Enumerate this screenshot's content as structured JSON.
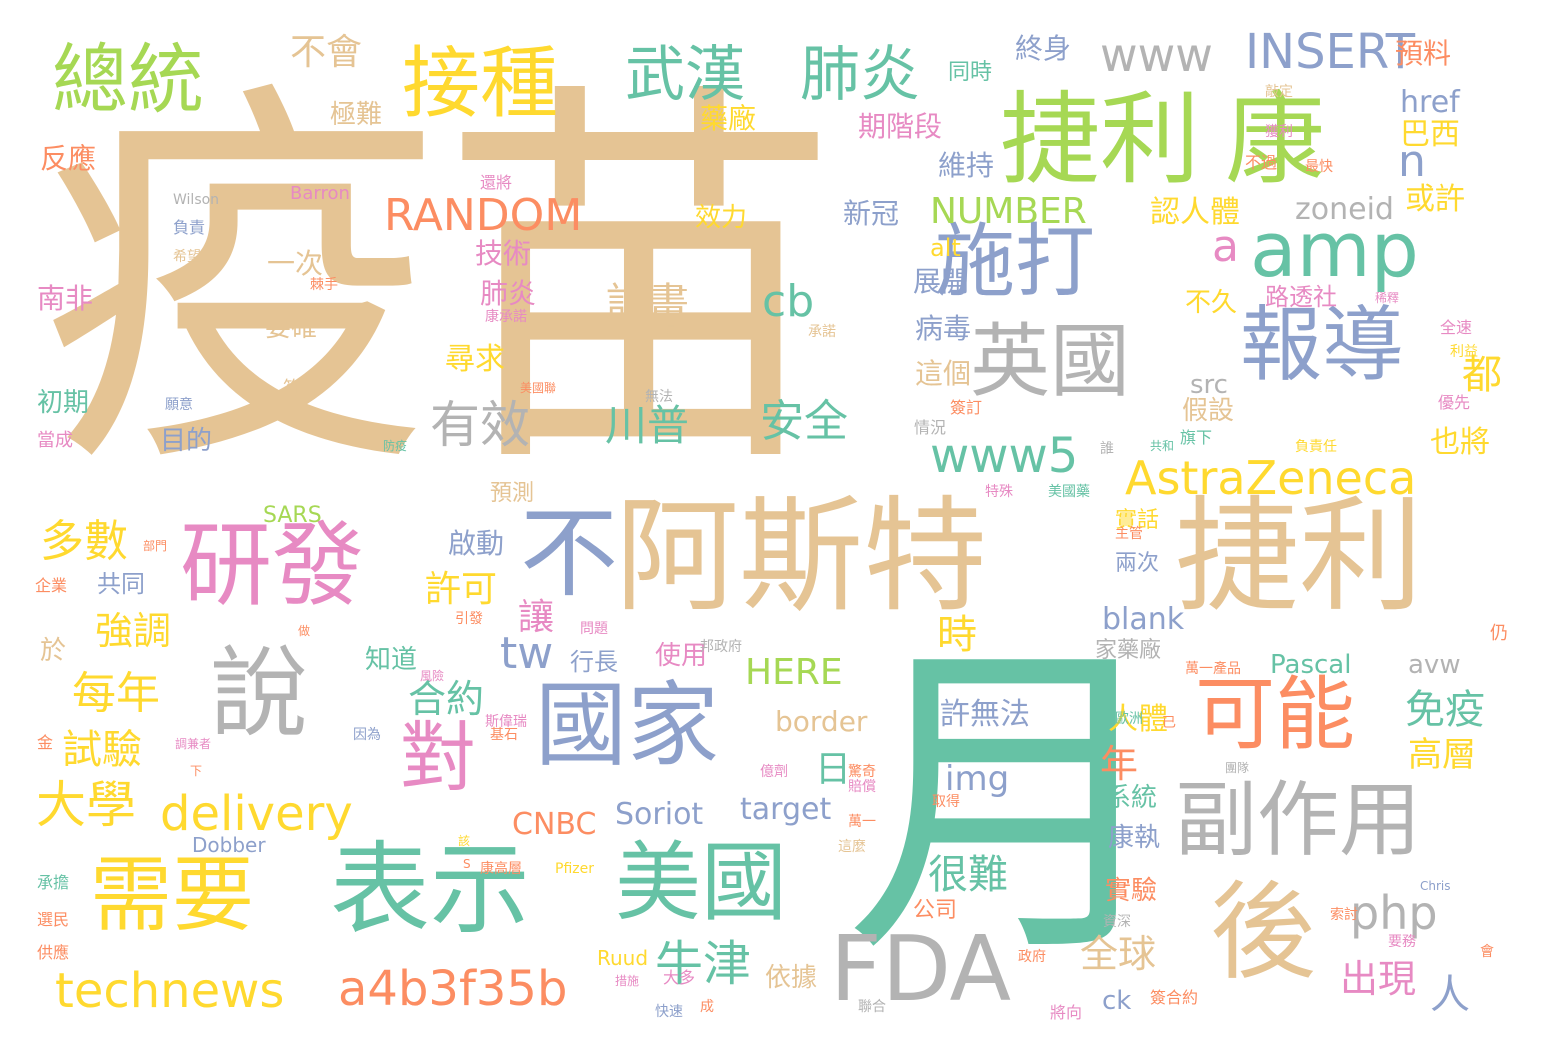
{
  "palette": {
    "tan": "#e5c494",
    "yellow": "#ffd92f",
    "green": "#a6d854",
    "teal": "#66c2a5",
    "orange": "#fc8d62",
    "blue": "#8da0cb",
    "pink": "#e78ac3",
    "gray": "#b3b3b3"
  },
  "words": {
    "w001": "疫苗",
    "w002": "月",
    "w003": "捷利",
    "w004": "康",
    "w005": "總統",
    "w006": "接種",
    "w007": "武漢",
    "w008": "肺炎",
    "w009": "www",
    "w010": "INSERT",
    "w011": "不會",
    "w012": "終身",
    "w013": "預料",
    "w014": "amp",
    "w015": "施打",
    "w016": "英國",
    "w017": "報導",
    "w018": "RANDOM",
    "w019": "NUMBER",
    "w020": "a",
    "w021": "n",
    "w022": "cb",
    "w023": "計畫",
    "w024": "川普",
    "w025": "安全",
    "w026": "有效",
    "w027": "www5",
    "w028": "AstraZeneca",
    "w029": "研發",
    "w030": "不",
    "w031": "阿斯特",
    "w032": "捷利",
    "w033": "說",
    "w034": "國家",
    "w035": "對",
    "w036": "可能",
    "w037": "副作用",
    "w038": "後",
    "w039": "需要",
    "w040": "表示",
    "w041": "美國",
    "w042": "FDA",
    "w043": "technews",
    "w044": "a4b3f35b",
    "w045": "delivery",
    "w046": "大學",
    "w047": "每年",
    "w048": "試驗",
    "w049": "多數",
    "w050": "強調",
    "w051": "牛津",
    "w052": "全球",
    "w053": "出現",
    "w054": "php",
    "w055": "免疫",
    "w056": "高層",
    "w057": "許無法",
    "w058": "很難",
    "w059": "img",
    "w060": "HERE",
    "w061": "border",
    "w062": "target",
    "w063": "CNBC",
    "w064": "Soriot",
    "w065": "日",
    "w066": "年",
    "w067": "tw",
    "w068": "合約",
    "w069": "許可",
    "w070": "讓",
    "w071": "時",
    "w072": "blank",
    "w073": "人體",
    "w074": "Pascal",
    "w075": "avw",
    "w076": "zoneid",
    "w077": "src",
    "w078": "href",
    "w079": "巴西",
    "w080": "都",
    "w081": "也將",
    "w082": "人",
    "w083": "認人體",
    "w084": "或許",
    "w085": "假設",
    "w086": "反應",
    "w087": "南非",
    "w088": "初期",
    "w089": "當成",
    "w090": "企業",
    "w091": "於",
    "w092": "金",
    "w093": "承擔",
    "w094": "選民",
    "w095": "供應",
    "w096": "極難",
    "w097": "藥廠",
    "w098": "期階段",
    "w099": "維持",
    "w100": "新冠",
    "w101": "效力",
    "w102": "技術",
    "w103": "一次",
    "w104": "alt",
    "w105": "展開",
    "w106": "病毒",
    "w107": "這個",
    "w108": "要確",
    "w109": "肺炎",
    "w110": "不久",
    "w111": "路透社",
    "w112": "尋求",
    "w113": "目的",
    "w114": "SARS",
    "w115": "預測",
    "w116": "啟動",
    "w117": "共同",
    "w118": "知道",
    "w119": "行長",
    "w120": "使用",
    "w121": "系統",
    "w122": "康執",
    "w123": "實驗",
    "w124": "公司",
    "w125": "依據",
    "w126": "ck",
    "w127": "實話",
    "w128": "兩次",
    "w129": "家藥廠",
    "w130": "同時",
    "w131": "Wilson",
    "w132": "Barron",
    "w133": "負責",
    "w134": "希望",
    "w135": "棘手",
    "w136": "康承諾",
    "w137": "美國聯",
    "w138": "願意",
    "w139": "符合",
    "w140": "防疫",
    "w141": "成員",
    "w142": "承諾",
    "w143": "無法",
    "w144": "簽訂",
    "w145": "情況",
    "w146": "誰",
    "w147": "共和",
    "w148": "旗下",
    "w149": "負責任",
    "w150": "特殊",
    "w151": "美國藥",
    "w152": "主管",
    "w153": "部門",
    "w154": "引發",
    "w155": "問題",
    "w156": "邦政府",
    "w157": "做",
    "w158": "風險",
    "w159": "斯偉瑞",
    "w160": "基石",
    "w161": "因為",
    "w162": "億劑",
    "w163": "驚奇",
    "w164": "賠償",
    "w165": "取得",
    "w166": "團隊",
    "w167": "萬一產品",
    "w168": "歐洲",
    "w169": "已",
    "w170": "仍",
    "w171": "調兼者",
    "w172": "下",
    "w173": "萬一",
    "w174": "這麼",
    "w175": "Dobber",
    "w176": "該",
    "w177": "S",
    "w178": "康高層",
    "w179": "Pfizer",
    "w180": "資深",
    "w181": "索討",
    "w182": "Chris",
    "w183": "要務",
    "w184": "會",
    "w185": "Ruud",
    "w186": "措施",
    "w187": "大多",
    "w188": "成",
    "w189": "快速",
    "w190": "聯合",
    "w191": "政府",
    "w192": "將向",
    "w193": "簽合約",
    "w194": "還將",
    "w195": "敲定",
    "w196": "獲利",
    "w197": "不過",
    "w198": "最快",
    "w199": "全速",
    "w200": "利益",
    "w201": "稀釋",
    "w202": "優先"
  }
}
